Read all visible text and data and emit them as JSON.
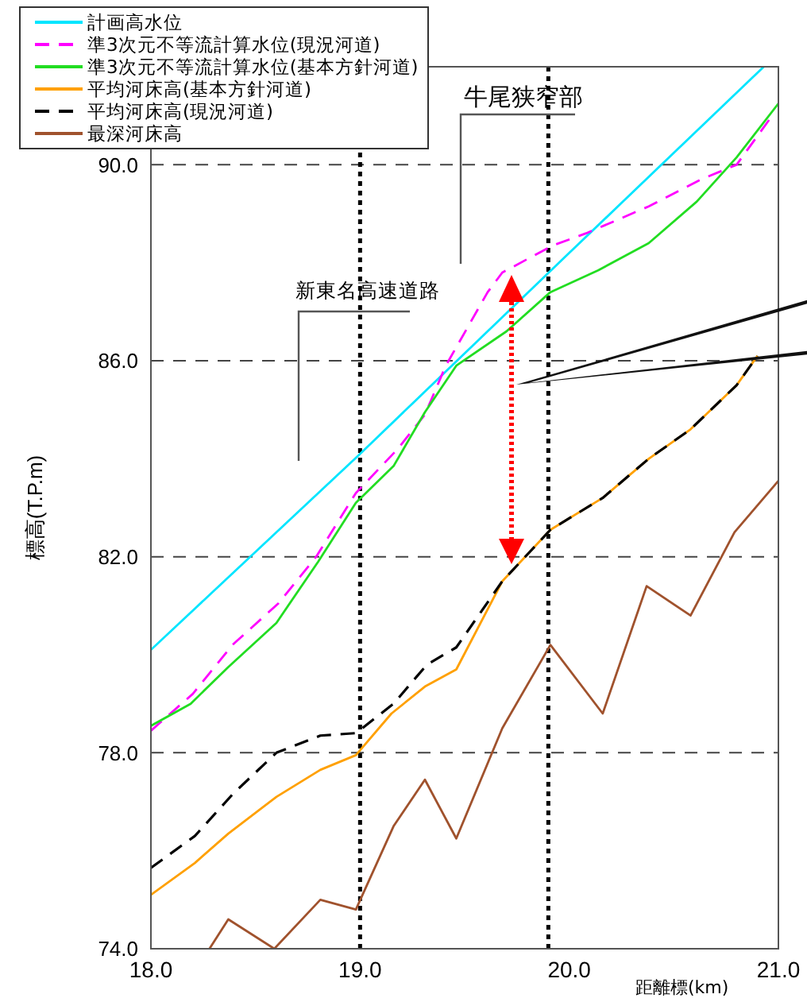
{
  "chart_data": {
    "type": "line",
    "xlabel": "距離標(km)",
    "ylabel": "標高(T.P.m)",
    "xlim": [
      18,
      21
    ],
    "xticks": [
      {
        "value": 18,
        "label": "18.0"
      },
      {
        "value": 19,
        "label": "19.0"
      },
      {
        "value": 20,
        "label": "20.0"
      },
      {
        "value": 21,
        "label": "21.0"
      }
    ],
    "ylim": [
      74,
      92
    ],
    "yticks": [
      {
        "value": 74,
        "label": "74.0"
      },
      {
        "value": 78,
        "label": "78.0"
      },
      {
        "value": 82,
        "label": "82.0"
      },
      {
        "value": 86,
        "label": "86.0"
      },
      {
        "value": 90,
        "label": "90.0"
      }
    ],
    "grid": "y",
    "legend": "top left",
    "marker": "none",
    "series": [
      {
        "name": "計画高水位",
        "color": "#00e5ff",
        "line_style": "solid",
        "x": [
          18.0,
          19.0,
          20.0,
          20.93
        ],
        "values": [
          80.1,
          84.1,
          88.2,
          92.0
        ]
      },
      {
        "name": "準3次元不等流計算水位(現況河道)",
        "color": "#ff00ff",
        "line_style": "dashed",
        "x": [
          18.0,
          18.2,
          18.39,
          18.61,
          18.79,
          18.98,
          19.18,
          19.31,
          19.41,
          19.61,
          19.68,
          19.92,
          20.08,
          20.38,
          20.63,
          20.8,
          20.97
        ],
        "values": [
          78.45,
          79.2,
          80.2,
          81.05,
          82.0,
          83.3,
          84.2,
          84.9,
          85.9,
          87.4,
          87.8,
          88.35,
          88.6,
          89.15,
          89.7,
          90.0,
          91.0
        ]
      },
      {
        "name": "準3次元不等流計算水位(基本方針河道)",
        "color": "#22dd22",
        "line_style": "solid",
        "x": [
          18.0,
          18.19,
          18.37,
          18.6,
          18.8,
          18.98,
          19.16,
          19.31,
          19.46,
          19.7,
          19.91,
          20.14,
          20.38,
          20.61,
          20.8,
          21.0
        ],
        "values": [
          78.55,
          79.0,
          79.75,
          80.65,
          81.9,
          83.1,
          83.85,
          84.95,
          85.9,
          86.6,
          87.4,
          87.85,
          88.4,
          89.25,
          90.15,
          91.25
        ]
      },
      {
        "name": "平均河床高(基本方針河道)",
        "color": "#ffa000",
        "line_style": "solid",
        "x": [
          18.0,
          18.21,
          18.37,
          18.6,
          18.81,
          18.98,
          19.15,
          19.31,
          19.46,
          19.68,
          19.91,
          20.16,
          20.38,
          20.58,
          20.8,
          20.9
        ],
        "values": [
          75.1,
          75.75,
          76.35,
          77.1,
          77.65,
          77.95,
          78.8,
          79.35,
          79.7,
          81.5,
          82.55,
          83.2,
          84.0,
          84.6,
          85.5,
          86.1
        ]
      },
      {
        "name": "平均河床高(現況河道)",
        "color": "#000000",
        "line_style": "dashed",
        "x": [
          18.0,
          18.21,
          18.39,
          18.6,
          18.81,
          18.98,
          19.16,
          19.32,
          19.46,
          19.68,
          19.91,
          20.16,
          20.38,
          20.58,
          20.8,
          20.9
        ],
        "values": [
          75.65,
          76.3,
          77.15,
          78.0,
          78.35,
          78.4,
          79.0,
          79.8,
          80.15,
          81.5,
          82.55,
          83.2,
          84.0,
          84.6,
          85.5,
          86.1
        ]
      },
      {
        "name": "最深河床高",
        "color": "#a0522d",
        "line_style": "solid",
        "x": [
          18.28,
          18.37,
          18.59,
          18.81,
          18.98,
          19.16,
          19.31,
          19.46,
          19.68,
          19.91,
          20.16,
          20.37,
          20.58,
          20.79,
          21.0
        ],
        "values": [
          74.0,
          74.6,
          74.0,
          75.0,
          74.8,
          76.5,
          77.45,
          76.25,
          78.5,
          80.2,
          78.8,
          81.4,
          80.8,
          82.5,
          83.55
        ]
      }
    ],
    "ref_lines": [
      {
        "axis": "x",
        "value": 19.0,
        "color": "#000000",
        "line_style": "dotted"
      },
      {
        "axis": "x",
        "value": 19.9,
        "color": "#000000",
        "line_style": "dotted"
      }
    ],
    "annotations": [
      "新東名高速道路",
      "牛尾狭窄部"
    ]
  }
}
